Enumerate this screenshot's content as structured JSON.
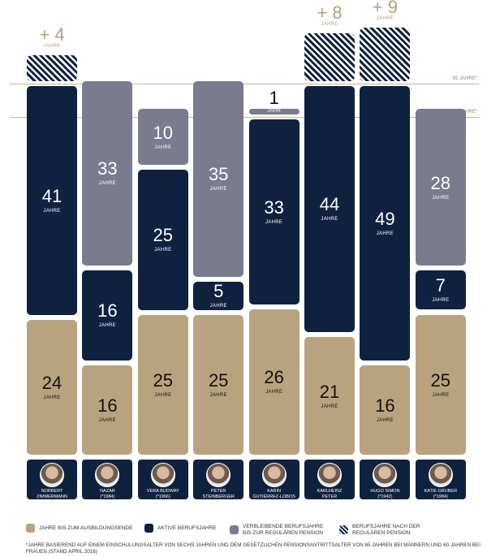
{
  "colors": {
    "education": "#b9a37f",
    "active": "#0e2240",
    "remaining": "#7a7b8f"
  },
  "unit_plural": "JAHRE",
  "unit_singular": "JAHR",
  "reflines": {
    "r65": "65 JAHRE*",
    "r60": "60 JAHRE*"
  },
  "chart_data": {
    "type": "bar",
    "stacked": true,
    "categories": [
      "NORBERT ZIMMERMANN",
      "NAZAR",
      "VERA BUDWAY",
      "PETER STEINBERGER",
      "KARIN GUTIÉRREZ-LOBOS",
      "KARLHEINZ PETER",
      "HUGO SIMON",
      "KATIE GRUBER"
    ],
    "series": [
      {
        "name": "JAHRE BIS ZUM AUSBILDUNGSENDE",
        "values": [
          24,
          16,
          25,
          25,
          26,
          21,
          16,
          25
        ]
      },
      {
        "name": "AKTIVE BERUFSJAHRE",
        "values": [
          41,
          16,
          25,
          5,
          33,
          44,
          49,
          7
        ]
      },
      {
        "name": "VERBLEIBENDE BERUFSJAHRE BIS ZUR REGULÄREN PENSION",
        "values": [
          0,
          33,
          10,
          35,
          1,
          0,
          0,
          28
        ]
      },
      {
        "name": "BERUFSJAHRE NACH DER REGULÄREN PENSION",
        "values": [
          4,
          0,
          0,
          0,
          0,
          8,
          9,
          0
        ]
      }
    ],
    "extra_labels": [
      "+ 4",
      "",
      "",
      "",
      "",
      "+ 8",
      "+ 9",
      ""
    ],
    "reference_lines": [
      65,
      60
    ]
  },
  "people": [
    {
      "name": "NORBERT\nZIMMERMANN",
      "born": "(*1947)"
    },
    {
      "name": "NAZAR",
      "born": "(*1984)"
    },
    {
      "name": "VERA BUDWAY",
      "born": "(*1966)"
    },
    {
      "name": "PETER\nSTEINBERGER",
      "born": "(*1986)"
    },
    {
      "name": "KARIN\nGUTIÉRREZ-LOBOS",
      "born": "(*1957)"
    },
    {
      "name": "KARLHEINZ\nPETER",
      "born": "(*1943)"
    },
    {
      "name": "HUGO SIMON",
      "born": "(*1942)"
    },
    {
      "name": "KATIE GRUBER",
      "born": "(*1984)"
    }
  ],
  "legend": [
    "JAHRE BIS ZUM AUSBILDUNGSENDE",
    "AKTIVE BERUFSJAHRE",
    "VERBLEIBENDE BERUFSJAHRE\nBIS ZUR REGULÄREN PENSION",
    "BERUFSJAHRE NACH DER\nREGULÄREN PENSION"
  ],
  "footnote": "*JAHRE BASIEREND AUF EINEM EINSCHULUNGSALTER VON SECHS JAHREN UND DEM GESETZLICHEN PENSIONSANTRITTSALTER VON 65 JAHREN BEI MÄNNERN UND 60 JAHREN BEI FRAUEN (STAND APRIL 2016)"
}
